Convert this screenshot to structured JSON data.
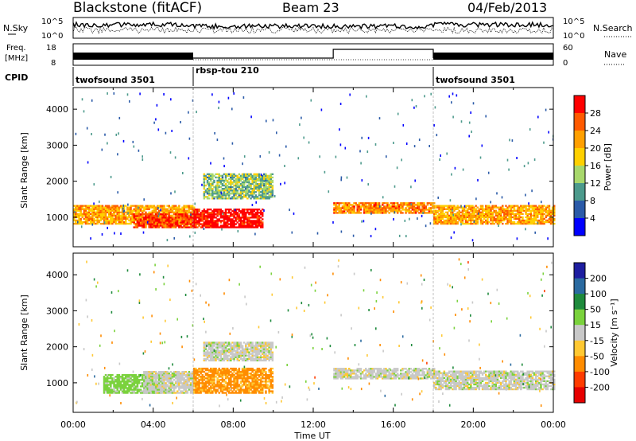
{
  "header": {
    "title": "Blackstone (fitACF)",
    "beam": "Beam 23",
    "date": "04/Feb/2013"
  },
  "noise_panel": {
    "left_label": "N.Sky",
    "right_label": "N.Search",
    "left_ticks": [
      "10^5",
      "10^0"
    ],
    "right_ticks": [
      "10^5",
      "10^0"
    ]
  },
  "freq_panel": {
    "left_label_1": "Freq.",
    "left_label_2": "[MHz]",
    "right_label": "Nave",
    "left_ticks": [
      "18",
      "8"
    ],
    "right_ticks": [
      "60",
      "0"
    ]
  },
  "cpid": {
    "label": "CPID",
    "segments": [
      {
        "name": "twofsound 3501",
        "start_hour": 0,
        "end_hour": 6
      },
      {
        "name": "rbsp-tou 210",
        "start_hour": 6,
        "end_hour": 18
      },
      {
        "name": "twofsound 3501",
        "start_hour": 18,
        "end_hour": 24
      }
    ]
  },
  "power_panel": {
    "ylabel": "Slant Range [km]",
    "cbar_label": "Power [dB]",
    "cbar_ticks": [
      "28",
      "24",
      "20",
      "16",
      "12",
      "8",
      "4"
    ],
    "cbar_colors": [
      "#ff0000",
      "#ff5a00",
      "#ff9f00",
      "#ffd000",
      "#a8d86c",
      "#4c9a8c",
      "#2a5aa8",
      "#0000ff"
    ]
  },
  "velocity_panel": {
    "ylabel": "Slant Range [km]",
    "cbar_label": "Velocity [m s⁻¹]",
    "cbar_ticks": [
      "200",
      "100",
      "50",
      "15",
      "-15",
      "-50",
      "-100",
      "-200"
    ],
    "cbar_colors": [
      "#1e1ea0",
      "#2a6aa0",
      "#1e8a3c",
      "#7ad23c",
      "#c8c8c8",
      "#ffc832",
      "#ff8c00",
      "#ff3c00",
      "#e60000"
    ]
  },
  "x_axis": {
    "label": "Time UT",
    "ticks": [
      "00:00",
      "04:00",
      "08:00",
      "12:00",
      "16:00",
      "20:00",
      "00:00"
    ]
  },
  "chart_data": [
    {
      "type": "heatmap",
      "panel": "power",
      "xlabel": "",
      "ylabel": "Slant Range [km]",
      "xlim": [
        0,
        24
      ],
      "ylim": [
        180,
        4600
      ],
      "yticks": [
        1000,
        2000,
        3000,
        4000
      ],
      "colorbar_label": "Power [dB]",
      "colorbar_range": [
        0,
        30
      ],
      "colorbar_ticks": [
        4,
        8,
        12,
        16,
        20,
        24,
        28
      ],
      "regions": [
        {
          "t0": 0,
          "t1": 6,
          "r0": 800,
          "r1": 1300,
          "level": 20
        },
        {
          "t0": 3,
          "t1": 6,
          "r0": 700,
          "r1": 1100,
          "level": 26
        },
        {
          "t0": 6,
          "t1": 9.5,
          "r0": 700,
          "r1": 1200,
          "level": 29
        },
        {
          "t0": 6.5,
          "t1": 10,
          "r0": 1500,
          "r1": 2200,
          "level": 12
        },
        {
          "t0": 13,
          "t1": 18,
          "r0": 1100,
          "r1": 1400,
          "level": 22
        },
        {
          "t0": 18,
          "t1": 24,
          "r0": 800,
          "r1": 1300,
          "level": 20
        }
      ]
    },
    {
      "type": "heatmap",
      "panel": "velocity",
      "xlabel": "Time UT",
      "ylabel": "Slant Range [km]",
      "xlim": [
        0,
        24
      ],
      "ylim": [
        180,
        4600
      ],
      "yticks": [
        1000,
        2000,
        3000,
        4000
      ],
      "colorbar_label": "Velocity [m s⁻¹]",
      "colorbar_ticks": [
        200,
        100,
        50,
        15,
        -15,
        -50,
        -100,
        -200
      ],
      "regions": [
        {
          "t0": 1.5,
          "t1": 4.5,
          "r0": 700,
          "r1": 1200,
          "velocity": 30
        },
        {
          "t0": 3.5,
          "t1": 6,
          "r0": 700,
          "r1": 1300,
          "velocity": 0
        },
        {
          "t0": 6,
          "t1": 10,
          "r0": 700,
          "r1": 1400,
          "velocity": -60
        },
        {
          "t0": 6.5,
          "t1": 10,
          "r0": 1600,
          "r1": 2100,
          "velocity": 0
        },
        {
          "t0": 13,
          "t1": 18,
          "r0": 1100,
          "r1": 1400,
          "velocity": 0
        },
        {
          "t0": 18,
          "t1": 24,
          "r0": 800,
          "r1": 1300,
          "velocity": 0
        }
      ]
    }
  ]
}
